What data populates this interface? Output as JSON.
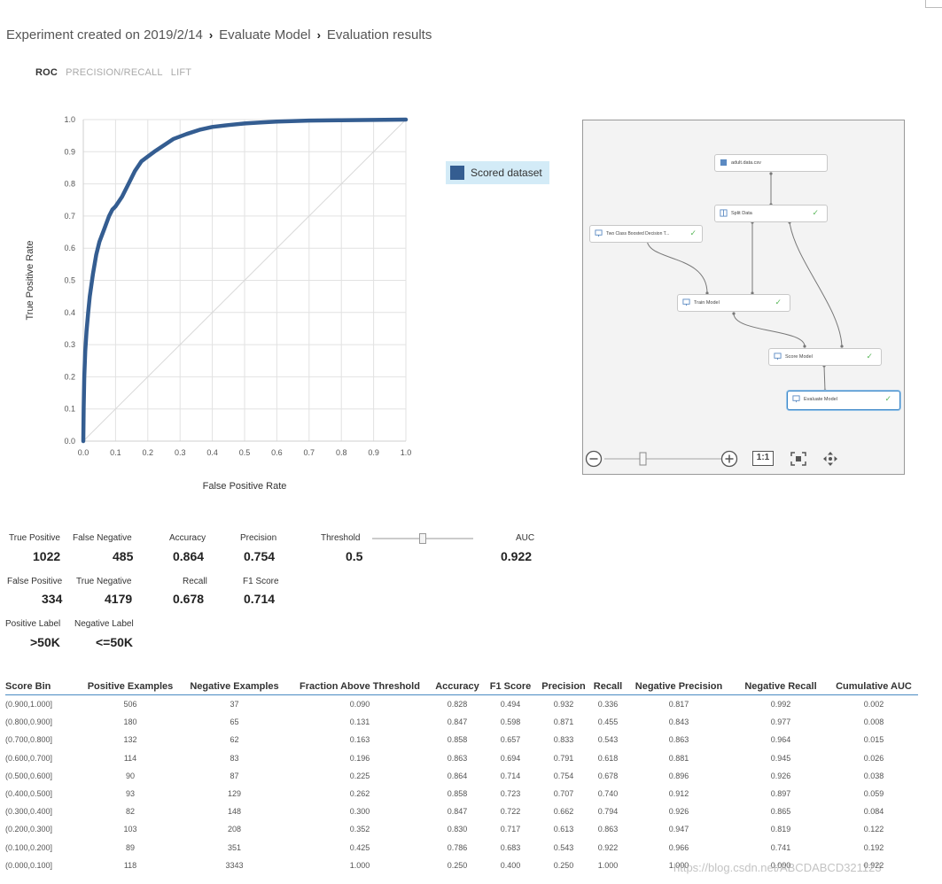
{
  "breadcrumb": {
    "items": [
      "Experiment created on 2019/2/14",
      "Evaluate Model",
      "Evaluation results"
    ],
    "separator": "›"
  },
  "tabs": [
    {
      "label": "ROC",
      "active": true
    },
    {
      "label": "PRECISION/RECALL",
      "active": false
    },
    {
      "label": "LIFT",
      "active": false
    }
  ],
  "chart_data": {
    "type": "line",
    "title": "",
    "xlabel": "False Positive Rate",
    "ylabel": "True Positive Rate",
    "xlim": [
      0,
      1
    ],
    "ylim": [
      0,
      1
    ],
    "x_ticks": [
      "0.0",
      "0.1",
      "0.2",
      "0.3",
      "0.4",
      "0.5",
      "0.6",
      "0.7",
      "0.8",
      "0.9",
      "1.0"
    ],
    "y_ticks": [
      "0.0",
      "0.1",
      "0.2",
      "0.3",
      "0.4",
      "0.5",
      "0.6",
      "0.7",
      "0.8",
      "0.9",
      "1.0"
    ],
    "grid": true,
    "legend_position": "right",
    "series": [
      {
        "name": "Scored dataset",
        "color": "#345d91",
        "x": [
          0,
          0.001,
          0.003,
          0.006,
          0.01,
          0.015,
          0.02,
          0.03,
          0.04,
          0.05,
          0.065,
          0.08,
          0.09,
          0.1,
          0.12,
          0.14,
          0.16,
          0.18,
          0.2,
          0.22,
          0.25,
          0.28,
          0.32,
          0.36,
          0.4,
          0.45,
          0.5,
          0.55,
          0.6,
          0.7,
          0.8,
          0.9,
          1.0
        ],
        "y": [
          0,
          0.1,
          0.2,
          0.28,
          0.34,
          0.4,
          0.45,
          0.52,
          0.58,
          0.62,
          0.66,
          0.7,
          0.72,
          0.73,
          0.76,
          0.8,
          0.84,
          0.87,
          0.885,
          0.9,
          0.92,
          0.94,
          0.955,
          0.968,
          0.977,
          0.983,
          0.988,
          0.991,
          0.994,
          0.997,
          0.998,
          0.999,
          1.0
        ]
      },
      {
        "name": "",
        "color": "#d8d8d8",
        "x": [
          0,
          1
        ],
        "y": [
          0,
          1
        ]
      }
    ]
  },
  "legend": {
    "label": "Scored dataset",
    "color": "#345d91",
    "background": "#d3ebf7"
  },
  "graph": {
    "nodes": [
      {
        "id": "adult",
        "label": "adult.data.csv",
        "check": false,
        "selected": false
      },
      {
        "id": "split",
        "label": "Split Data",
        "check": true,
        "selected": false
      },
      {
        "id": "twoclass",
        "label": "Two Class Boosted Decision T...",
        "check": true,
        "selected": false
      },
      {
        "id": "train",
        "label": "Train Model",
        "check": true,
        "selected": false
      },
      {
        "id": "score",
        "label": "Score Model",
        "check": true,
        "selected": false
      },
      {
        "id": "evaluate",
        "label": "Evaluate Model",
        "check": true,
        "selected": true
      }
    ],
    "controls": {
      "fit_label": "1:1",
      "zoom_level": 0.05
    }
  },
  "metrics": {
    "true_positive_label": "True Positive",
    "true_positive": "1022",
    "false_negative_label": "False Negative",
    "false_negative": "485",
    "false_positive_label": "False Positive",
    "false_positive": "334",
    "true_negative_label": "True Negative",
    "true_negative": "4179",
    "accuracy_label": "Accuracy",
    "accuracy": "0.864",
    "precision_label": "Precision",
    "precision": "0.754",
    "recall_label": "Recall",
    "recall": "0.678",
    "f1_label": "F1 Score",
    "f1": "0.714",
    "threshold_label": "Threshold",
    "threshold": "0.5",
    "threshold_fraction": 0.5,
    "auc_label": "AUC",
    "auc": "0.922",
    "positive_label_label": "Positive Label",
    "positive_label": ">50K",
    "negative_label_label": "Negative Label",
    "negative_label": "<=50K"
  },
  "table": {
    "headers": [
      "Score Bin",
      "Positive Examples",
      "Negative Examples",
      "Fraction Above Threshold",
      "Accuracy",
      "F1 Score",
      "Precision",
      "Recall",
      "Negative Precision",
      "Negative Recall",
      "Cumulative AUC"
    ],
    "rows": [
      [
        "(0.900,1.000]",
        "506",
        "37",
        "0.090",
        "0.828",
        "0.494",
        "0.932",
        "0.336",
        "0.817",
        "0.992",
        "0.002"
      ],
      [
        "(0.800,0.900]",
        "180",
        "65",
        "0.131",
        "0.847",
        "0.598",
        "0.871",
        "0.455",
        "0.843",
        "0.977",
        "0.008"
      ],
      [
        "(0.700,0.800]",
        "132",
        "62",
        "0.163",
        "0.858",
        "0.657",
        "0.833",
        "0.543",
        "0.863",
        "0.964",
        "0.015"
      ],
      [
        "(0.600,0.700]",
        "114",
        "83",
        "0.196",
        "0.863",
        "0.694",
        "0.791",
        "0.618",
        "0.881",
        "0.945",
        "0.026"
      ],
      [
        "(0.500,0.600]",
        "90",
        "87",
        "0.225",
        "0.864",
        "0.714",
        "0.754",
        "0.678",
        "0.896",
        "0.926",
        "0.038"
      ],
      [
        "(0.400,0.500]",
        "93",
        "129",
        "0.262",
        "0.858",
        "0.723",
        "0.707",
        "0.740",
        "0.912",
        "0.897",
        "0.059"
      ],
      [
        "(0.300,0.400]",
        "82",
        "148",
        "0.300",
        "0.847",
        "0.722",
        "0.662",
        "0.794",
        "0.926",
        "0.865",
        "0.084"
      ],
      [
        "(0.200,0.300]",
        "103",
        "208",
        "0.352",
        "0.830",
        "0.717",
        "0.613",
        "0.863",
        "0.947",
        "0.819",
        "0.122"
      ],
      [
        "(0.100,0.200]",
        "89",
        "351",
        "0.425",
        "0.786",
        "0.683",
        "0.543",
        "0.922",
        "0.966",
        "0.741",
        "0.192"
      ],
      [
        "(0.000,0.100]",
        "118",
        "3343",
        "1.000",
        "0.250",
        "0.400",
        "0.250",
        "1.000",
        "1.000",
        "0.000",
        "0.922"
      ]
    ]
  },
  "watermark": "https://blog.csdn.net/ABCDABCD321123"
}
